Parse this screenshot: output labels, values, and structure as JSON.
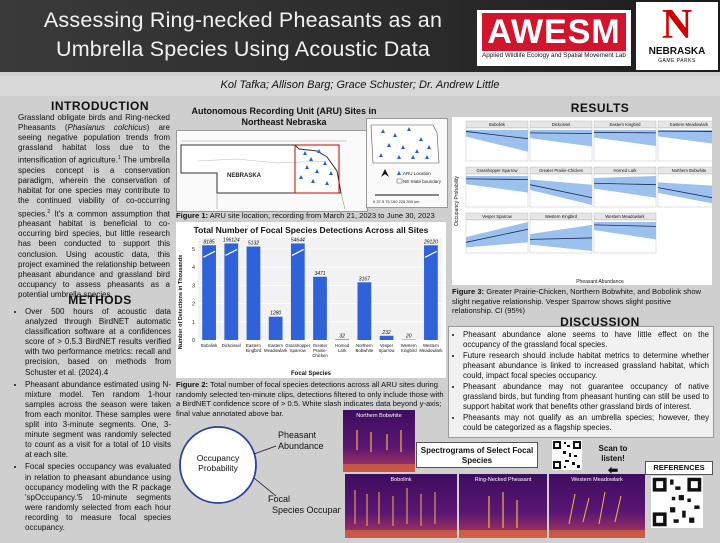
{
  "header": {
    "title_line1": "Assessing Ring-necked Pheasants as an",
    "title_line2": "Umbrella Species Using Acoustic Data",
    "awesm": "AWESM",
    "awesm_sub": "Applied Wildlife Ecology and Spatial Movement Lab",
    "nebraska_letter": "N",
    "nebraska_name": "NEBRASKA",
    "nebraska_sub": "GAME PARKS"
  },
  "authors": "Kol Tafka; Allison Barg; Grace Schuster; Dr. Andrew Little",
  "introduction": {
    "heading": "INTRODUCTION",
    "text_part1": "Grassland obligate birds and Ring-necked Pheasants (",
    "species": "Phasianus colchicus",
    "text_part2": ") are seeing negative population trends from grassland habitat loss due to the intensification of agriculture.",
    "sup1": "1",
    "text_part3": " The umbrella species concept is a conservation paradigm, wherein the conservation of habitat for one species may contribute to the continued viability of co-occurring species.",
    "sup2": "2",
    "text_part4": " It's a common assumption that pheasant habitat is beneficial to co-occurring bird species, but little research has been conducted to support this conclusion. Using acoustic data, this project examined the relationship between pheasant abundance and grassland bird occupancy to assess pheasants as a potential umbrella species."
  },
  "methods": {
    "heading": "METHODS",
    "items": [
      "Over 500 hours of acoustic data analyzed through BirdNET automatic classification software at a confidences score of > 0.5.3 BirdNET results verified with two performance metrics: recall and precision, based on methods from Schuster et al. (2024).4",
      "Pheasant abundance estimated using N-mixture model. Ten random 1-hour samples across the season were taken from each monitor. These samples were split into 3-minute segments. One, 3-minute segment was randomly selected to count as a visit for a total of 10 visits at each site.",
      "Focal species occupancy was evaluated in relation to pheasant abundance using occupancy modeling with the R package 'spOccupancy.'5 10-minute segments were randomly selected from each hour recording to measure focal species occupancy."
    ]
  },
  "map": {
    "title": "Autonomous Recording Unit (ARU) Sites in Northeast Nebraska",
    "state_label": "NEBRASKA",
    "legend_aru": "ARU Location",
    "legend_study": "NE State boundary",
    "scale_label": "0 37.5 75 150 225 300 km",
    "colors": {
      "site": "#2a5fd6",
      "study_box": "#d00000"
    }
  },
  "figure1_caption": {
    "label": "Figure 1:",
    "text": " ARU site location, recording from March 21, 2023 to June 30, 2023"
  },
  "chart_data": {
    "type": "bar",
    "title": "Total Number of Focal Species Detections Across all Sites",
    "xlabel": "Focal Species",
    "ylabel": "Number of Detections in Thousands",
    "categories": [
      "Bobolink",
      "Dickcissel",
      "Eastern Kingbird",
      "Eastern Meadowlark",
      "Grasshopper Sparrow",
      "Greater Prairie-Chicken",
      "Horned Lark",
      "Northern Bobwhite",
      "Vesper Sparrow",
      "Western Kingbird",
      "Western Meadowlark"
    ],
    "values": [
      8185,
      196124,
      5132,
      1280,
      54644,
      3471,
      32,
      3167,
      232,
      20,
      29120
    ],
    "plotted_thousands": [
      5.2,
      5.3,
      5.132,
      1.28,
      5.3,
      3.471,
      0.032,
      3.167,
      0.232,
      0.02,
      5.2
    ],
    "value_labels": [
      "8185",
      "196124",
      "5132",
      "1280",
      "54644",
      "3471",
      "32",
      "3167",
      "232",
      "20",
      "29120"
    ],
    "yticks": [
      0,
      1,
      2,
      3,
      4,
      5
    ],
    "ylim": [
      0,
      5.6
    ],
    "bar_color": "#2f62d8",
    "grid": true
  },
  "figure2_caption": {
    "label": "Figure 2:",
    "text": " Total number of focal species detections across all ARU sites during randomly selected ten-minute clips, detections filtered to only include those with a BirdNET confidence score of > 0.5. White slash indicates data beyond y-axis; final value annotated above bar."
  },
  "diagram": {
    "center": "Occupancy Probability",
    "top": "Pheasant Abundance",
    "bottom": "Focal Species Occupancy"
  },
  "results": {
    "heading": "RESULTS",
    "y_axis": "Occupancy Probability",
    "x_axis": "Pheasant Abundance",
    "panels": [
      "Bobolink",
      "Dickcissel",
      "Eastern Kingbird",
      "Eastern Meadowlark",
      "Grasshopper Sparrow",
      "Greater Prairie-Chicken",
      "Horned Lark",
      "Northern Bobwhite",
      "Vesper Sparrow",
      "Western Kingbird",
      "Western Meadowlark"
    ],
    "ribbon_color": "#9cc1ee",
    "line_color": "#1b2a55"
  },
  "figure3_caption": {
    "label": "Figure 3:",
    "text": " Greater Prairie-Chicken, Northern Bobwhite, and Bobolink show slight negative relationship. Vesper Sparrow shows slight positive relationship. CI (95%)"
  },
  "discussion": {
    "heading": "DISCUSSION",
    "items": [
      "Pheasant abundance alone seems to have little effect on the occupancy of the grassland focal species.",
      "Future research should include habitat metrics to determine whether pheasant abundance is linked to increased grassland habitat, which could, impact focal species occupancy.",
      "Pheasant abundance may not guarantee occupancy of native grassland birds, but funding from pheasant hunting can still be used to support habitat work that benefits other grassland birds of interest.",
      "Pheasants may not qualify as an umbrella species; however, they could be categorized as a flagship species."
    ]
  },
  "spectrograms": {
    "label": "Spectrograms of Select Focal Species",
    "titles": [
      "Northern Bobwhite",
      "Bobolink",
      "Ring-Necked Pheasant",
      "Western Meadowlark"
    ]
  },
  "scan_label": "Scan to listen!",
  "references_label": "REFERENCES"
}
